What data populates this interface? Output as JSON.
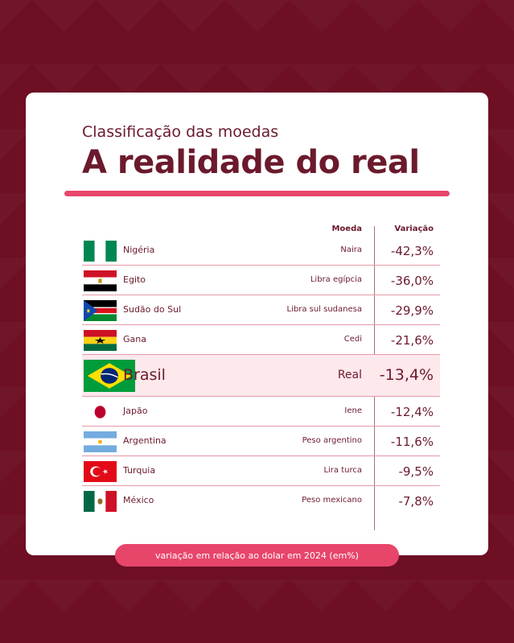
{
  "subtitle": "Classificação das moedas",
  "title": "A realidade do real",
  "footer_note": "variação em relação ao dolar em 2024 (em%)",
  "chart_data": {
    "type": "table",
    "columns": [
      "Moeda",
      "Variação"
    ],
    "rows": [
      {
        "country": "Nigéria",
        "currency": "Naira",
        "value": "-42,3%",
        "flag": "nigeria-flag-icon"
      },
      {
        "country": "Egito",
        "currency": "Libra egípcia",
        "value": "-36,0%",
        "flag": "egypt-flag-icon"
      },
      {
        "country": "Sudão do Sul",
        "currency": "Libra sul sudanesa",
        "value": "-29,9%",
        "flag": "south-sudan-flag-icon"
      },
      {
        "country": "Gana",
        "currency": "Cedi",
        "value": "-21,6%",
        "flag": "ghana-flag-icon"
      },
      {
        "country": "Brasil",
        "currency": "Real",
        "value": "-13,4%",
        "flag": "brazil-flag-icon",
        "highlight": true
      },
      {
        "country": "Japão",
        "currency": "Iene",
        "value": "-12,4%",
        "flag": "japan-flag-icon"
      },
      {
        "country": "Argentina",
        "currency": "Peso argentino",
        "value": "-11,6%",
        "flag": "argentina-flag-icon"
      },
      {
        "country": "Turquia",
        "currency": "Lira turca",
        "value": "-9,5%",
        "flag": "turkey-flag-icon"
      },
      {
        "country": "México",
        "currency": "Peso mexicano",
        "value": "-7,8%",
        "flag": "mexico-flag-icon"
      }
    ]
  },
  "colors": {
    "background": "#6e0f24",
    "accent": "#e8456b",
    "text": "#6b1a2c",
    "highlight_row": "#fde8ec"
  }
}
